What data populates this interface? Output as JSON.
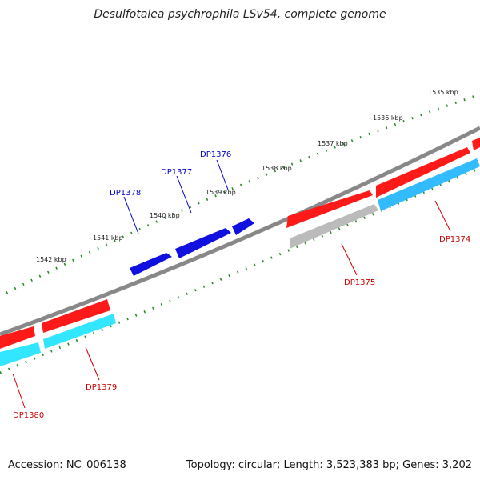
{
  "title": "Desulfotalea psychrophila LSv54, complete genome",
  "footer": {
    "accession": "Accession: NC_006138",
    "summary": "Topology: circular; Length: 3,523,383 bp; Genes: 3,202"
  },
  "ruler_labels": [
    "1535 kbp",
    "1536 kbp",
    "1537 kbp",
    "1538 kbp",
    "1539 kbp",
    "1540 kbp",
    "1541 kbp",
    "1542 kbp"
  ],
  "genes_blue": [
    "DP1376",
    "DP1377",
    "DP1378"
  ],
  "genes_red": [
    "DP1374",
    "DP1375",
    "DP1379",
    "DP1380"
  ],
  "colors": {
    "backbone": "#888888",
    "forward": "#ff1a1a",
    "reverse_blue": "#1010e0",
    "cyan": "#33e6ff",
    "sky": "#33bbff",
    "grey": "#bbbbbb",
    "tick": "#228822",
    "label_blue": "#0000cc",
    "label_red": "#cc0000"
  }
}
